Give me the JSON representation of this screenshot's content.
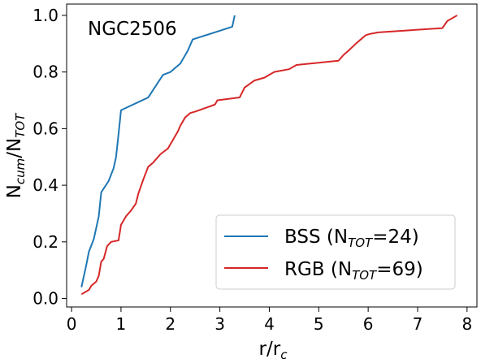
{
  "chart_data": {
    "type": "line",
    "annotation": "NGC2506",
    "xlabel": {
      "main": "r/r",
      "sub": "c"
    },
    "ylabel": {
      "main": "N",
      "sub1": "cum",
      "mid": "/N",
      "sub2": "TOT"
    },
    "xlim": [
      -0.1,
      8.2
    ],
    "ylim": [
      -0.03,
      1.04
    ],
    "x_ticks": [
      0,
      1,
      2,
      3,
      4,
      5,
      6,
      7,
      8
    ],
    "y_ticks": [
      0.0,
      0.2,
      0.4,
      0.6,
      0.8,
      1.0
    ],
    "x_tick_labels": [
      "0",
      "1",
      "2",
      "3",
      "4",
      "5",
      "6",
      "7",
      "8"
    ],
    "y_tick_labels": [
      "0.0",
      "0.2",
      "0.4",
      "0.6",
      "0.8",
      "1.0"
    ],
    "grid": false,
    "legend_position": "bottom-right",
    "series": [
      {
        "name": "BSS (N_TOT=24)",
        "legend": {
          "pre": "BSS (N",
          "sub": "TOT",
          "post": "=24)"
        },
        "color": "#1f77b4",
        "x": [
          0.2,
          0.3,
          0.35,
          0.45,
          0.5,
          0.55,
          0.6,
          0.75,
          0.85,
          0.9,
          0.95,
          1.0,
          1.55,
          1.7,
          1.85,
          2.0,
          2.2,
          2.35,
          2.45,
          3.25,
          3.3
        ],
        "y": [
          0.04,
          0.12,
          0.165,
          0.21,
          0.25,
          0.29,
          0.375,
          0.415,
          0.46,
          0.5,
          0.58,
          0.665,
          0.71,
          0.75,
          0.79,
          0.8,
          0.83,
          0.875,
          0.915,
          0.96,
          1.0
        ]
      },
      {
        "name": "RGB (N_TOT=69)",
        "legend": {
          "pre": "RGB (N",
          "sub": "TOT",
          "post": "=69)"
        },
        "color": "#d62728",
        "x": [
          0.2,
          0.35,
          0.4,
          0.5,
          0.55,
          0.6,
          0.65,
          0.72,
          0.8,
          0.95,
          1.0,
          1.1,
          1.2,
          1.3,
          1.35,
          1.45,
          1.55,
          1.65,
          1.8,
          1.95,
          2.05,
          2.15,
          2.2,
          2.3,
          2.4,
          2.5,
          2.9,
          2.95,
          3.4,
          3.5,
          3.7,
          3.9,
          4.1,
          4.4,
          4.55,
          5.4,
          5.5,
          5.6,
          5.75,
          5.85,
          5.95,
          6.05,
          6.2,
          7.5,
          7.6,
          7.8
        ],
        "y": [
          0.015,
          0.03,
          0.045,
          0.06,
          0.08,
          0.13,
          0.14,
          0.185,
          0.2,
          0.205,
          0.26,
          0.29,
          0.31,
          0.335,
          0.37,
          0.42,
          0.465,
          0.48,
          0.51,
          0.53,
          0.56,
          0.59,
          0.61,
          0.64,
          0.655,
          0.66,
          0.685,
          0.7,
          0.71,
          0.745,
          0.77,
          0.78,
          0.8,
          0.81,
          0.825,
          0.84,
          0.86,
          0.875,
          0.9,
          0.915,
          0.93,
          0.935,
          0.94,
          0.955,
          0.98,
          1.0
        ]
      }
    ]
  }
}
